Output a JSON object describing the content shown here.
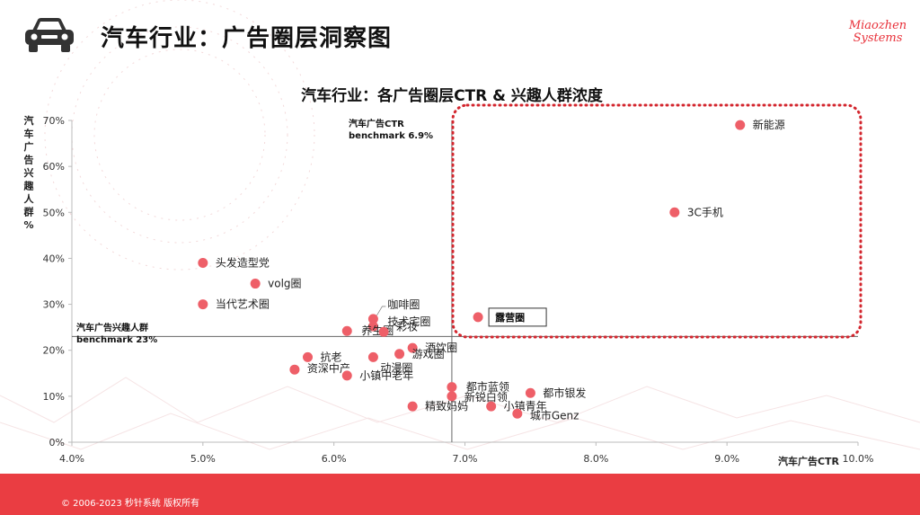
{
  "page": {
    "title": "汽车行业：广告圈层洞察图",
    "logo_line1": "Miaozhen",
    "logo_line2": "Systems",
    "copyright": "© 2006-2023 秒针系统 版权所有",
    "header_icon": "car-icon"
  },
  "colors": {
    "accent": "#e8313a",
    "footer": "#ea3d42",
    "point": "#ee5f68",
    "highlight_box": "#d3262e"
  },
  "chart_data": {
    "type": "scatter",
    "title": "汽车行业：各广告圈层CTR & 兴趣人群浓度",
    "xlabel": "汽车广告CTR",
    "ylabel": "汽车广告兴趣人群%",
    "xlim": [
      4.0,
      10.0
    ],
    "ylim": [
      0,
      70
    ],
    "x_ticks": [
      4.0,
      5.0,
      6.0,
      7.0,
      8.0,
      9.0,
      10.0
    ],
    "x_tick_labels": [
      "4.0%",
      "5.0%",
      "6.0%",
      "7.0%",
      "8.0%",
      "9.0%",
      "10.0%"
    ],
    "y_ticks": [
      0,
      10,
      20,
      30,
      40,
      50,
      60,
      70
    ],
    "y_tick_labels": [
      "0%",
      "10%",
      "20%",
      "30%",
      "40%",
      "50%",
      "60%",
      "70%"
    ],
    "grid": false,
    "benchmark_x": 6.9,
    "benchmark_x_label": [
      "汽车广告CTR",
      "benchmark 6.9%"
    ],
    "benchmark_y": 23,
    "benchmark_y_label": [
      "汽车广告兴趣人群",
      "benchmark 23%"
    ],
    "points": [
      {
        "label": "新能源",
        "x": 9.1,
        "y": 69
      },
      {
        "label": "3C手机",
        "x": 8.6,
        "y": 50
      },
      {
        "label": "头发造型党",
        "x": 5.0,
        "y": 39
      },
      {
        "label": "volg圈",
        "x": 5.4,
        "y": 34.5
      },
      {
        "label": "当代艺术圈",
        "x": 5.0,
        "y": 30
      },
      {
        "label": "露营圈",
        "x": 7.1,
        "y": 27.2,
        "boxed": true
      },
      {
        "label": "咖啡圈",
        "x": 6.3,
        "y": 26.8
      },
      {
        "label": "技术宅圈",
        "x": 6.3,
        "y": 25.2
      },
      {
        "label": "养生圈",
        "x": 6.1,
        "y": 24.2
      },
      {
        "label": "彩妆",
        "x": 6.38,
        "y": 24.0
      },
      {
        "label": "酒饮圈",
        "x": 6.6,
        "y": 20.5
      },
      {
        "label": "游戏圈",
        "x": 6.5,
        "y": 19.2
      },
      {
        "label": "抗老",
        "x": 5.8,
        "y": 18.5
      },
      {
        "label": "动漫圈",
        "x": 6.3,
        "y": 18.5
      },
      {
        "label": "资深中产",
        "x": 5.7,
        "y": 15.8
      },
      {
        "label": "小镇中老年",
        "x": 6.1,
        "y": 14.5
      },
      {
        "label": "都市蓝领",
        "x": 6.9,
        "y": 12.0
      },
      {
        "label": "都市银发",
        "x": 7.5,
        "y": 10.7
      },
      {
        "label": "新锐白领",
        "x": 6.9,
        "y": 10.0
      },
      {
        "label": "精致妈妈",
        "x": 6.6,
        "y": 7.8
      },
      {
        "label": "小镇青年",
        "x": 7.2,
        "y": 7.8
      },
      {
        "label": "城市Genz",
        "x": 7.4,
        "y": 6.2
      }
    ]
  }
}
